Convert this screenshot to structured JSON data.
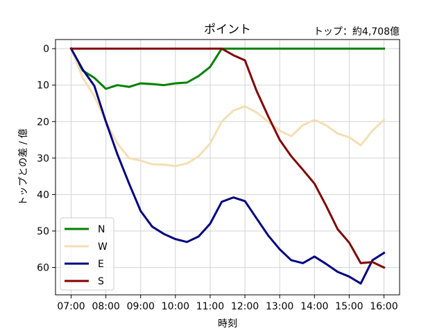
{
  "chart_data": {
    "type": "line",
    "title": "ポイント",
    "subtitle": "トップ：約4,708億",
    "xlabel": "時刻",
    "ylabel": "トップとの差 / 億",
    "x_tick_labels": [
      "07:00",
      "08:00",
      "09:00",
      "10:00",
      "11:00",
      "12:00",
      "13:00",
      "14:00",
      "15:00",
      "16:00"
    ],
    "y_ticks": [
      0,
      10,
      20,
      30,
      40,
      50,
      60
    ],
    "x_hours": [
      7.0,
      7.333,
      7.667,
      8.0,
      8.333,
      8.667,
      9.0,
      9.333,
      9.667,
      10.0,
      10.333,
      10.667,
      11.0,
      11.333,
      11.667,
      12.0,
      12.333,
      12.667,
      13.0,
      13.333,
      13.667,
      14.0,
      14.333,
      14.667,
      15.0,
      15.333,
      15.667,
      16.0
    ],
    "xlim": [
      6.55,
      16.45
    ],
    "ylim_inverted": [
      -2.5,
      67.5
    ],
    "grid": true,
    "legend_position": "lower-left",
    "series": [
      {
        "name": "N",
        "color": "#008000",
        "values": [
          0,
          6,
          8,
          11,
          10,
          10.5,
          9.5,
          9.7,
          10,
          9.5,
          9.3,
          7.5,
          5,
          0,
          0,
          0,
          0,
          0,
          0,
          0,
          0,
          0,
          0,
          0,
          0,
          0,
          0,
          0
        ]
      },
      {
        "name": "W",
        "color": "#f5deb3",
        "values": [
          0,
          8,
          13,
          20,
          26,
          30,
          30.7,
          31.7,
          31.8,
          32.2,
          31.5,
          29.5,
          26,
          20,
          17,
          15.8,
          17.5,
          20,
          22.5,
          24,
          21,
          19.5,
          21,
          23.3,
          24.3,
          26.5,
          22.5,
          19.5
        ]
      },
      {
        "name": "E",
        "color": "#000080",
        "values": [
          0,
          5.7,
          10.2,
          20,
          29,
          37,
          44.5,
          48.8,
          50.8,
          52.2,
          53,
          51.5,
          48,
          42,
          40.8,
          41.8,
          46.5,
          51.2,
          55,
          58,
          58.8,
          57,
          59,
          61.2,
          62.5,
          64.4,
          58,
          56
        ]
      },
      {
        "name": "S",
        "color": "#800000",
        "values": [
          0,
          0,
          0,
          0,
          0,
          0,
          0,
          0,
          0,
          0,
          0,
          0,
          0,
          0,
          1.8,
          3.2,
          11.5,
          18.5,
          25,
          29.5,
          33.2,
          37,
          43,
          49.5,
          53.2,
          58.8,
          58.5,
          60
        ]
      }
    ]
  }
}
